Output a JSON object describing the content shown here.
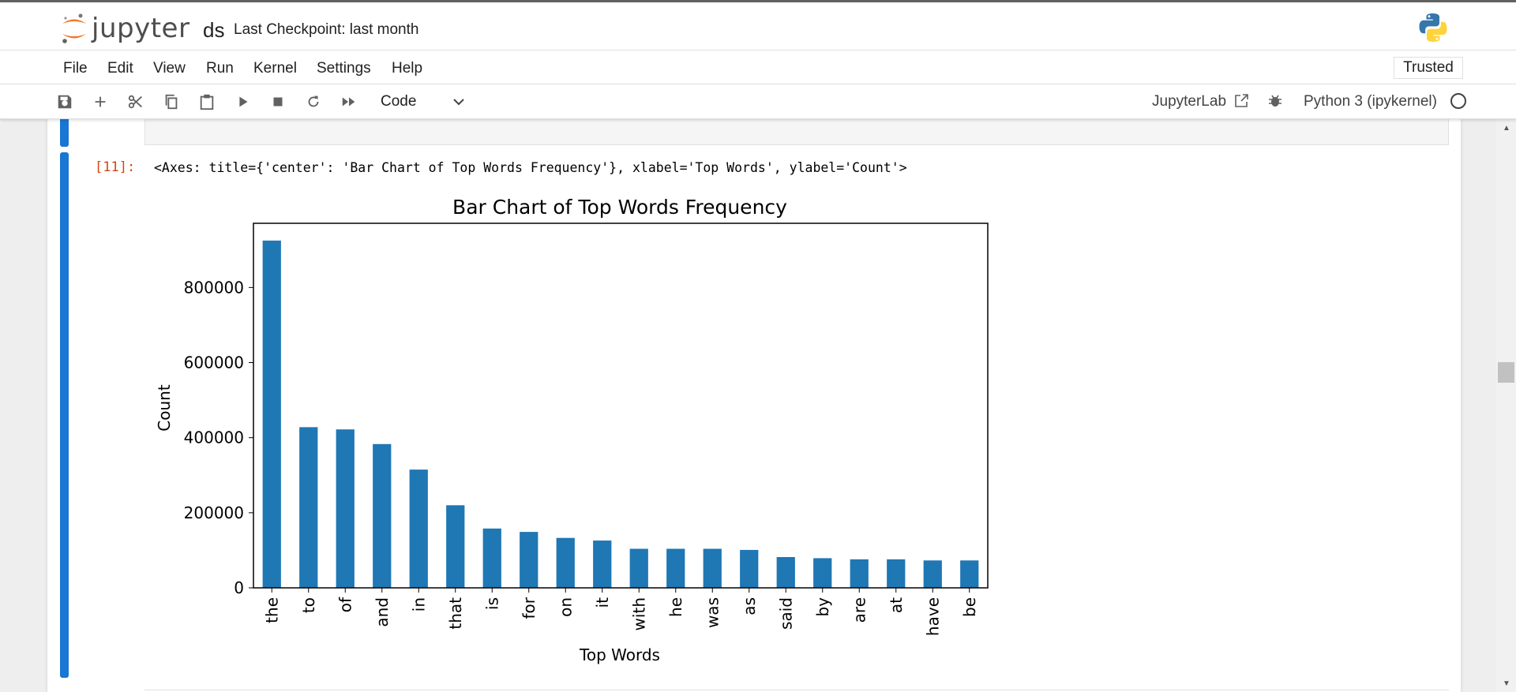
{
  "header": {
    "logo_text": "jupyter",
    "notebook_name": "ds",
    "checkpoint": "Last Checkpoint: last month"
  },
  "menu": {
    "items": [
      "File",
      "Edit",
      "View",
      "Run",
      "Kernel",
      "Settings",
      "Help"
    ],
    "trusted": "Trusted"
  },
  "toolbar": {
    "cell_type": "Code",
    "jupyterlab_label": "JupyterLab",
    "kernel_name": "Python 3 (ipykernel)"
  },
  "cell": {
    "prompt": "[11]:",
    "output_text": "<Axes: title={'center': 'Bar Chart of Top Words Frequency'}, xlabel='Top Words', ylabel='Count'>"
  },
  "chart_data": {
    "type": "bar",
    "title": "Bar Chart of Top Words Frequency",
    "xlabel": "Top Words",
    "ylabel": "Count",
    "categories": [
      "the",
      "to",
      "of",
      "and",
      "in",
      "that",
      "is",
      "for",
      "on",
      "it",
      "with",
      "he",
      "was",
      "as",
      "said",
      "by",
      "are",
      "at",
      "have",
      "be"
    ],
    "values": [
      925000,
      428000,
      422000,
      383000,
      315000,
      220000,
      158000,
      149000,
      133000,
      126000,
      104000,
      104000,
      104000,
      101000,
      82000,
      79000,
      76000,
      76000,
      73000,
      73000
    ],
    "yticks": [
      0,
      200000,
      400000,
      600000,
      800000
    ],
    "ytick_labels": [
      "0",
      "200000",
      "400000",
      "600000",
      "800000"
    ],
    "ylim": [
      0,
      971000
    ],
    "color": "#1f77b4"
  }
}
